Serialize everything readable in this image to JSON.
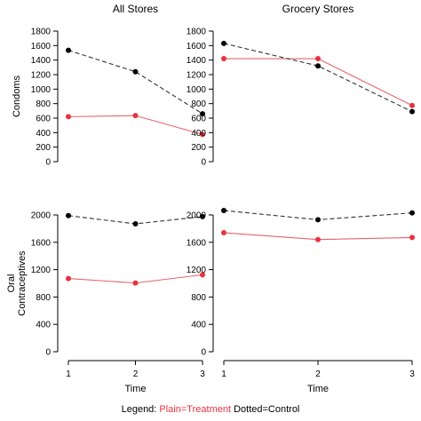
{
  "chart_data": [
    {
      "type": "line",
      "title": "All Stores",
      "ylabel": "Condoms",
      "xlabel": "",
      "x": [
        1,
        2,
        3
      ],
      "ylim": [
        0,
        1800
      ],
      "yticks": [
        0,
        200,
        400,
        600,
        800,
        1000,
        1200,
        1400,
        1600,
        1800
      ],
      "series": [
        {
          "name": "Plain=Treatment",
          "style": "solid",
          "values": [
            620,
            635,
            375
          ]
        },
        {
          "name": "Dotted=Control",
          "style": "dashed",
          "values": [
            1535,
            1240,
            660
          ]
        }
      ]
    },
    {
      "type": "line",
      "title": "Grocery Stores",
      "ylabel": "",
      "xlabel": "",
      "x": [
        1,
        2,
        3
      ],
      "ylim": [
        0,
        1800
      ],
      "yticks": [
        0,
        200,
        400,
        600,
        800,
        1000,
        1200,
        1400,
        1600,
        1800
      ],
      "series": [
        {
          "name": "Plain=Treatment",
          "style": "solid",
          "values": [
            1420,
            1420,
            775
          ]
        },
        {
          "name": "Dotted=Control",
          "style": "dashed",
          "values": [
            1630,
            1320,
            690
          ]
        }
      ]
    },
    {
      "type": "line",
      "title": "",
      "ylabel": "Oral Contraceptives",
      "xlabel": "Time",
      "x": [
        1,
        2,
        3
      ],
      "ylim": [
        0,
        2000
      ],
      "yticks": [
        0,
        400,
        800,
        1200,
        1600,
        2000
      ],
      "series": [
        {
          "name": "Plain=Treatment",
          "style": "solid",
          "values": [
            1070,
            1005,
            1125
          ]
        },
        {
          "name": "Dotted=Control",
          "style": "dashed",
          "values": [
            1990,
            1870,
            1975
          ]
        }
      ]
    },
    {
      "type": "line",
      "title": "",
      "ylabel": "",
      "xlabel": "Time",
      "x": [
        1,
        2,
        3
      ],
      "ylim": [
        0,
        2000
      ],
      "yticks": [
        0,
        400,
        800,
        1200,
        1600,
        2000
      ],
      "series": [
        {
          "name": "Plain=Treatment",
          "style": "solid",
          "values": [
            1740,
            1640,
            1670
          ]
        },
        {
          "name": "Dotted=Control",
          "style": "dashed",
          "values": [
            2065,
            1930,
            2030
          ]
        }
      ]
    }
  ],
  "legend": {
    "prefix": "Legend: ",
    "treatment": "Plain=Treatment",
    "control": " Dotted=Control"
  },
  "colors": {
    "treatment": "#e8636b",
    "treatment_point": "#e8333f",
    "control": "#333333",
    "control_point": "#000000",
    "legend_treatment_text": "#e8333f"
  }
}
